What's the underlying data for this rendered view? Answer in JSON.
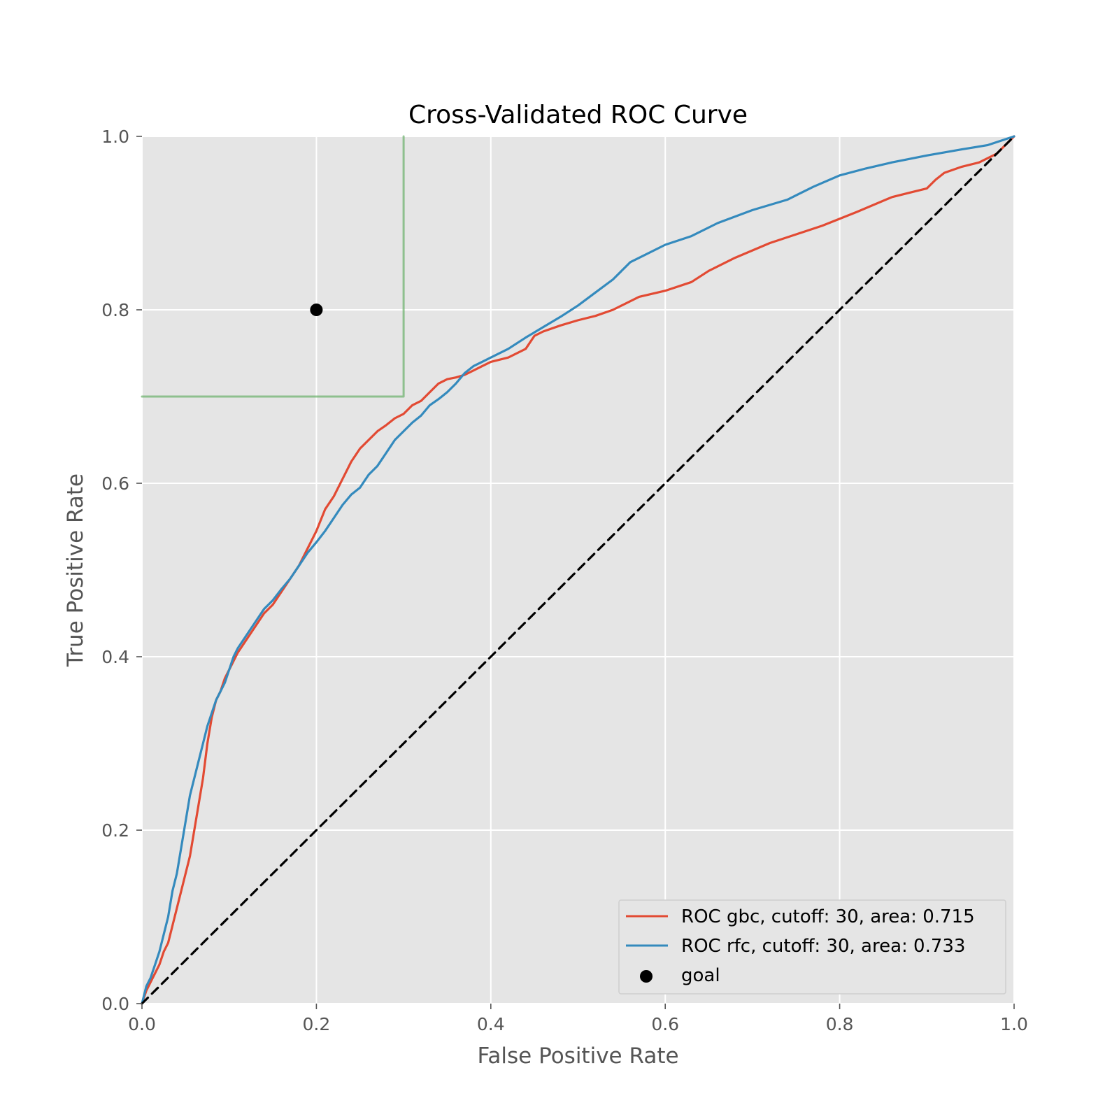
{
  "chart_data": {
    "type": "line",
    "title": "Cross-Validated ROC Curve",
    "xlabel": "False Positive Rate",
    "ylabel": "True Positive Rate",
    "xlim": [
      0,
      1
    ],
    "ylim": [
      0,
      1
    ],
    "xticks": [
      "0.0",
      "0.2",
      "0.4",
      "0.6",
      "0.8",
      "1.0"
    ],
    "yticks": [
      "0.0",
      "0.2",
      "0.4",
      "0.6",
      "0.8",
      "1.0"
    ],
    "grid": true,
    "legend_position": "lower-right",
    "series": [
      {
        "name": "ROC gbc, cutoff: 30, area: 0.715",
        "color": "#E24A33",
        "x": [
          0.0,
          0.005,
          0.01,
          0.015,
          0.02,
          0.025,
          0.03,
          0.035,
          0.04,
          0.045,
          0.05,
          0.055,
          0.06,
          0.065,
          0.07,
          0.075,
          0.08,
          0.085,
          0.09,
          0.095,
          0.1,
          0.105,
          0.11,
          0.12,
          0.13,
          0.14,
          0.15,
          0.16,
          0.17,
          0.18,
          0.19,
          0.2,
          0.21,
          0.22,
          0.23,
          0.24,
          0.25,
          0.26,
          0.27,
          0.28,
          0.29,
          0.3,
          0.31,
          0.32,
          0.33,
          0.34,
          0.35,
          0.36,
          0.37,
          0.38,
          0.39,
          0.4,
          0.42,
          0.44,
          0.45,
          0.46,
          0.48,
          0.5,
          0.52,
          0.54,
          0.55,
          0.57,
          0.6,
          0.63,
          0.65,
          0.68,
          0.72,
          0.75,
          0.78,
          0.82,
          0.86,
          0.88,
          0.9,
          0.91,
          0.92,
          0.94,
          0.96,
          0.98,
          1.0
        ],
        "y": [
          0.0,
          0.015,
          0.025,
          0.035,
          0.045,
          0.06,
          0.07,
          0.09,
          0.11,
          0.13,
          0.15,
          0.17,
          0.2,
          0.23,
          0.26,
          0.3,
          0.33,
          0.35,
          0.36,
          0.375,
          0.385,
          0.395,
          0.405,
          0.42,
          0.435,
          0.45,
          0.46,
          0.475,
          0.49,
          0.505,
          0.525,
          0.545,
          0.57,
          0.585,
          0.605,
          0.625,
          0.64,
          0.65,
          0.66,
          0.667,
          0.675,
          0.68,
          0.69,
          0.695,
          0.705,
          0.715,
          0.72,
          0.722,
          0.725,
          0.73,
          0.735,
          0.74,
          0.745,
          0.755,
          0.77,
          0.775,
          0.782,
          0.788,
          0.793,
          0.8,
          0.805,
          0.815,
          0.822,
          0.832,
          0.845,
          0.86,
          0.877,
          0.887,
          0.897,
          0.913,
          0.93,
          0.935,
          0.94,
          0.95,
          0.958,
          0.965,
          0.97,
          0.98,
          1.0
        ]
      },
      {
        "name": "ROC rfc, cutoff: 30, area: 0.733",
        "color": "#348ABD",
        "x": [
          0.0,
          0.005,
          0.01,
          0.015,
          0.02,
          0.025,
          0.03,
          0.035,
          0.04,
          0.045,
          0.05,
          0.055,
          0.06,
          0.065,
          0.07,
          0.075,
          0.08,
          0.085,
          0.09,
          0.095,
          0.1,
          0.105,
          0.11,
          0.12,
          0.13,
          0.14,
          0.15,
          0.16,
          0.17,
          0.18,
          0.19,
          0.2,
          0.21,
          0.22,
          0.23,
          0.24,
          0.25,
          0.26,
          0.27,
          0.28,
          0.29,
          0.3,
          0.31,
          0.32,
          0.33,
          0.34,
          0.35,
          0.36,
          0.37,
          0.38,
          0.39,
          0.4,
          0.42,
          0.44,
          0.46,
          0.48,
          0.5,
          0.52,
          0.54,
          0.56,
          0.58,
          0.6,
          0.63,
          0.66,
          0.7,
          0.74,
          0.77,
          0.8,
          0.83,
          0.86,
          0.9,
          0.94,
          0.97,
          1.0
        ],
        "y": [
          0.0,
          0.02,
          0.03,
          0.045,
          0.06,
          0.08,
          0.1,
          0.13,
          0.15,
          0.18,
          0.21,
          0.24,
          0.26,
          0.28,
          0.3,
          0.32,
          0.335,
          0.35,
          0.36,
          0.37,
          0.385,
          0.4,
          0.41,
          0.425,
          0.44,
          0.455,
          0.465,
          0.478,
          0.49,
          0.505,
          0.52,
          0.532,
          0.545,
          0.56,
          0.575,
          0.587,
          0.595,
          0.61,
          0.62,
          0.635,
          0.65,
          0.66,
          0.67,
          0.678,
          0.69,
          0.697,
          0.705,
          0.715,
          0.727,
          0.735,
          0.74,
          0.745,
          0.755,
          0.768,
          0.78,
          0.792,
          0.805,
          0.82,
          0.835,
          0.855,
          0.865,
          0.875,
          0.885,
          0.9,
          0.915,
          0.927,
          0.942,
          0.955,
          0.963,
          0.97,
          0.978,
          0.985,
          0.99,
          1.0
        ]
      },
      {
        "name": "",
        "color": "#000000",
        "style": "dashed",
        "x": [
          0.0,
          1.0
        ],
        "y": [
          0.0,
          1.0
        ]
      },
      {
        "name": "",
        "color": "#6AB06A",
        "x": [
          0.0,
          0.3,
          0.3
        ],
        "y": [
          0.7,
          0.7,
          1.0
        ]
      }
    ],
    "points": [
      {
        "name": "goal",
        "color": "#000000",
        "x": 0.2,
        "y": 0.8
      }
    ]
  }
}
